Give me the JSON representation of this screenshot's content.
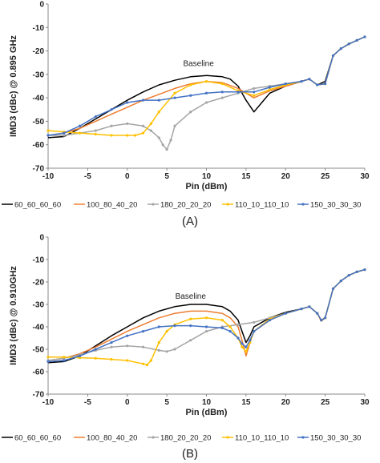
{
  "chart_data": [
    {
      "type": "line",
      "panel_label": "(A)",
      "xlabel": "Pin (dBm)",
      "ylabel": "IMD3 (dBc) @ 0.895 GHz",
      "xlim": [
        -10,
        30
      ],
      "ylim": [
        -70,
        0
      ],
      "xticks": [
        -10,
        -5,
        0,
        5,
        10,
        15,
        20,
        25,
        30
      ],
      "yticks": [
        0,
        -10,
        -20,
        -30,
        -40,
        -50,
        -60,
        -70
      ],
      "grid": false,
      "legend_position": "bottom",
      "annotations": [
        {
          "text": "Baseline",
          "x": 9,
          "y": -26.5
        }
      ],
      "series": [
        {
          "name": "60_60_60_60",
          "color": "#000000",
          "marker": "none",
          "x": [
            -10,
            -8,
            -6,
            -4,
            -2,
            0,
            2,
            4,
            6,
            8,
            10,
            12,
            13,
            14,
            15,
            16,
            17,
            18,
            20,
            22,
            23,
            24,
            25,
            26,
            27,
            28,
            29,
            30
          ],
          "y": [
            -57,
            -56.5,
            -53,
            -49,
            -45,
            -41,
            -37.5,
            -34.5,
            -32.5,
            -31,
            -30.5,
            -31,
            -32,
            -35,
            -41,
            -46,
            -42,
            -38,
            -35,
            -33,
            -32,
            -34.5,
            -33,
            -22,
            -19,
            -17,
            -15.5,
            -14
          ]
        },
        {
          "name": "100_80_40_20",
          "color": "#ED7D31",
          "marker": "none",
          "x": [
            -10,
            -8,
            -6,
            -4,
            -2,
            0,
            2,
            4,
            6,
            8,
            10,
            12,
            14,
            15,
            16,
            18,
            20,
            22,
            23,
            24,
            25,
            26,
            27,
            28,
            29,
            30
          ],
          "y": [
            -56,
            -55,
            -53,
            -50,
            -47,
            -44,
            -41,
            -38.5,
            -36,
            -34,
            -33,
            -33.5,
            -36,
            -38,
            -40,
            -37,
            -35,
            -33,
            -32,
            -34.5,
            -34,
            -22,
            -19,
            -17,
            -15.5,
            -14
          ]
        },
        {
          "name": "180_20_20_20",
          "color": "#A5A5A5",
          "marker": "dot",
          "x": [
            -10,
            -8,
            -6,
            -4,
            -2,
            0,
            2,
            3,
            4,
            4.5,
            5,
            5.5,
            6,
            8,
            10,
            12,
            14,
            16,
            18,
            20,
            22,
            23,
            24,
            25,
            26,
            27,
            28,
            29,
            30
          ],
          "y": [
            -56,
            -56,
            -55,
            -54,
            -52,
            -51,
            -52,
            -54,
            -57,
            -60,
            -62,
            -58,
            -52,
            -46,
            -42,
            -40,
            -38,
            -36,
            -35,
            -34,
            -33,
            -32,
            -34.5,
            -34,
            -22,
            -19,
            -17,
            -15.5,
            -14
          ]
        },
        {
          "name": "110_10_110_10",
          "color": "#FFC000",
          "marker": "dot",
          "x": [
            -10,
            -8,
            -6,
            -4,
            -2,
            0,
            1,
            2,
            3,
            4,
            6,
            8,
            10,
            12,
            14,
            16,
            18,
            20,
            22,
            23,
            24,
            25,
            26,
            27,
            28,
            29,
            30
          ],
          "y": [
            -54,
            -54.5,
            -55,
            -55.5,
            -56,
            -56,
            -56,
            -55,
            -51,
            -46,
            -38,
            -34.5,
            -33,
            -34,
            -37,
            -39,
            -36.5,
            -34.5,
            -33,
            -32,
            -34.5,
            -34,
            -22,
            -19,
            -17,
            -15.5,
            -14
          ]
        },
        {
          "name": "150_30_30_30",
          "color": "#4472C4",
          "marker": "dot",
          "x": [
            -10,
            -8,
            -6,
            -4,
            -2,
            0,
            2,
            4,
            6,
            8,
            10,
            12,
            14,
            16,
            18,
            20,
            22,
            23,
            24,
            25,
            26,
            27,
            28,
            29,
            30
          ],
          "y": [
            -56,
            -55,
            -52,
            -48,
            -45,
            -42,
            -41,
            -41,
            -40,
            -39,
            -38,
            -37.5,
            -37.5,
            -37.5,
            -35.5,
            -34,
            -33,
            -32,
            -34.5,
            -34,
            -22,
            -19,
            -17,
            -15.5,
            -14
          ]
        }
      ]
    },
    {
      "type": "line",
      "panel_label": "(B)",
      "xlabel": "Pin (dBm)",
      "ylabel": "IMD3 (dBc) @ 0.910GHz",
      "xlim": [
        -10,
        30
      ],
      "ylim": [
        -70,
        0
      ],
      "xticks": [
        -10,
        -5,
        0,
        5,
        10,
        15,
        20,
        25,
        30
      ],
      "yticks": [
        0,
        -10,
        -20,
        -30,
        -40,
        -50,
        -60,
        -70
      ],
      "grid": false,
      "legend_position": "bottom",
      "annotations": [
        {
          "text": "Baseline",
          "x": 8,
          "y": -27.5
        }
      ],
      "series": [
        {
          "name": "60_60_60_60",
          "color": "#000000",
          "marker": "none",
          "x": [
            -10,
            -8,
            -6,
            -4,
            -2,
            0,
            2,
            4,
            6,
            8,
            10,
            12,
            13,
            14,
            14.5,
            15,
            15.5,
            16,
            18,
            20,
            22,
            23,
            24,
            24.5,
            25,
            26,
            27,
            28,
            29,
            30
          ],
          "y": [
            -56,
            -55.5,
            -53,
            -48.5,
            -44,
            -40,
            -36,
            -33,
            -31,
            -30,
            -30,
            -31,
            -33,
            -37,
            -42,
            -47,
            -44,
            -40,
            -36,
            -33.5,
            -32,
            -31,
            -34,
            -37,
            -36,
            -23,
            -19.5,
            -17,
            -15.5,
            -14.5
          ]
        },
        {
          "name": "100_80_40_20",
          "color": "#ED7D31",
          "marker": "none",
          "x": [
            -10,
            -8,
            -6,
            -4,
            -2,
            0,
            2,
            4,
            6,
            8,
            10,
            12,
            13,
            14,
            14.5,
            15,
            15.5,
            16,
            18,
            20,
            22,
            23,
            24,
            24.5,
            25,
            26,
            27,
            28,
            29,
            30
          ],
          "y": [
            -55,
            -54,
            -52,
            -49,
            -45.5,
            -42,
            -39,
            -36,
            -34,
            -33,
            -33,
            -34,
            -36,
            -40,
            -46,
            -53,
            -47,
            -42,
            -37,
            -34,
            -32,
            -31,
            -34,
            -37.5,
            -36,
            -23,
            -19.5,
            -17,
            -15.5,
            -14.5
          ]
        },
        {
          "name": "180_20_20_20",
          "color": "#A5A5A5",
          "marker": "dot",
          "x": [
            -10,
            -8,
            -6,
            -4,
            -2,
            0,
            2,
            4,
            5,
            6,
            8,
            10,
            12,
            14,
            16,
            18,
            20,
            22,
            23,
            24,
            24.5,
            25,
            26,
            27,
            28,
            29,
            30
          ],
          "y": [
            -55,
            -54,
            -52.5,
            -50.5,
            -49,
            -48.5,
            -49,
            -50.5,
            -51,
            -50,
            -46,
            -42,
            -40,
            -39,
            -38,
            -36,
            -34,
            -32,
            -31,
            -34,
            -37,
            -36,
            -23,
            -19.5,
            -17,
            -15.5,
            -14.5
          ]
        },
        {
          "name": "110_10_110_10",
          "color": "#FFC000",
          "marker": "dot",
          "x": [
            -10,
            -8,
            -6,
            -4,
            -2,
            0,
            2,
            2.5,
            3,
            4,
            5,
            6,
            8,
            10,
            12,
            13,
            14,
            14.5,
            15,
            15.5,
            16,
            18,
            20,
            22,
            23,
            24,
            24.5,
            25,
            26,
            27,
            28,
            29,
            30
          ],
          "y": [
            -53.5,
            -53.5,
            -53.8,
            -54,
            -54.5,
            -55,
            -56.5,
            -57,
            -55,
            -47,
            -42,
            -39,
            -36.5,
            -36,
            -37,
            -40,
            -45,
            -49,
            -51,
            -47,
            -42,
            -36.5,
            -34,
            -32,
            -31,
            -34,
            -37,
            -36,
            -23,
            -19.5,
            -17,
            -15.5,
            -14.5
          ]
        },
        {
          "name": "150_30_30_30",
          "color": "#4472C4",
          "marker": "dot",
          "x": [
            -10,
            -8,
            -6,
            -4,
            -2,
            0,
            2,
            4,
            6,
            8,
            10,
            12,
            13,
            14,
            14.5,
            15,
            15.5,
            16,
            18,
            20,
            22,
            23,
            24,
            24.5,
            25,
            26,
            27,
            28,
            29,
            30
          ],
          "y": [
            -55.5,
            -55,
            -53,
            -50,
            -47,
            -44,
            -42,
            -40,
            -39.5,
            -39.5,
            -40,
            -40.5,
            -42,
            -45,
            -47.5,
            -49,
            -46,
            -42,
            -37,
            -34,
            -32,
            -31,
            -34,
            -37,
            -36,
            -23,
            -19.5,
            -17,
            -15.5,
            -14.5
          ]
        }
      ]
    }
  ]
}
